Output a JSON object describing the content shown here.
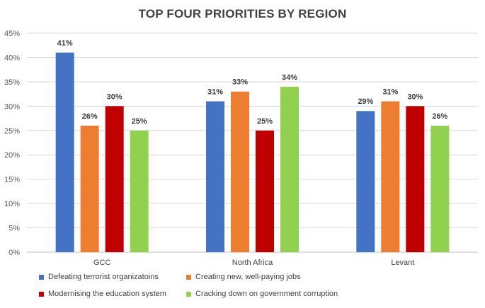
{
  "chart_data": {
    "type": "bar",
    "title": "TOP FOUR PRIORITIES BY REGION",
    "categories": [
      "GCC",
      "North Africa",
      "Levant"
    ],
    "series": [
      {
        "name": "Defeating terrorist organizatoins",
        "color": "#4472C4",
        "values": [
          41,
          31,
          29
        ]
      },
      {
        "name": "Creating new, well-paying jobs",
        "color": "#ED7D31",
        "values": [
          26,
          33,
          31
        ]
      },
      {
        "name": "Modernising the education system",
        "color": "#C00000",
        "values": [
          30,
          25,
          30
        ]
      },
      {
        "name": "Cracking down on government corruption",
        "color": "#92D050",
        "values": [
          25,
          34,
          26
        ]
      }
    ],
    "ylim": [
      0,
      45
    ],
    "yticks": [
      "0%",
      "5%",
      "10%",
      "15%",
      "20%",
      "25%",
      "30%",
      "35%",
      "40%",
      "45%"
    ],
    "value_suffix": "%",
    "grid": true,
    "legend_position": "bottom"
  }
}
